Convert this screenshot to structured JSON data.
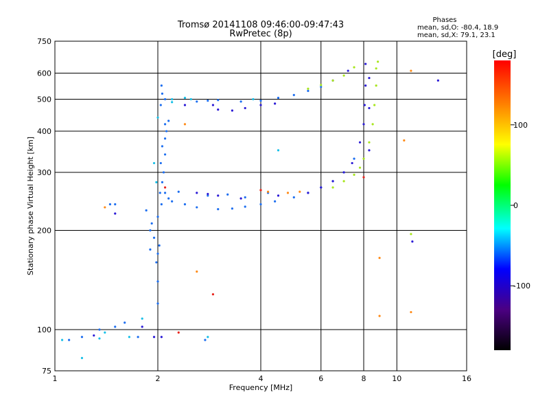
{
  "chart_data": {
    "type": "scatter",
    "title": "Tromsø 20141108 09:46:00-09:47:43",
    "subtitle": "RwPretec (8p)",
    "xlabel": "Frequency [MHz]",
    "ylabel": "Stationary phase Virtual Height [km]",
    "x_scale": "log2",
    "y_scale": "log",
    "xlim": [
      1,
      16
    ],
    "ylim": [
      75,
      750
    ],
    "x_ticks": [
      1,
      2,
      4,
      6,
      8,
      10,
      16
    ],
    "y_ticks": [
      75,
      100,
      200,
      300,
      400,
      500,
      600,
      750
    ],
    "grid": true,
    "phases_title": "Phases",
    "stats_lines": [
      "mean, sd,O: -80.4, 18.9",
      "mean, sd,X: 79.1, 23.1"
    ],
    "colorbar": {
      "label": "[deg]",
      "range": [
        -180,
        180
      ],
      "ticks": [
        100,
        0,
        -100
      ],
      "colors": [
        "#000000",
        "#4b0082",
        "#0000ff",
        "#00ffff",
        "#00ff00",
        "#ffff00",
        "#ff8000",
        "#ff0000"
      ]
    },
    "series": [
      {
        "color": "#1e6ff0",
        "points": [
          [
            2.0,
            120
          ],
          [
            2.0,
            140
          ],
          [
            1.98,
            160
          ],
          [
            2.02,
            180
          ],
          [
            1.95,
            190
          ],
          [
            1.9,
            200
          ],
          [
            1.92,
            210
          ],
          [
            2.0,
            220
          ],
          [
            2.05,
            240
          ],
          [
            2.03,
            260
          ],
          [
            2.06,
            280
          ],
          [
            2.08,
            300
          ],
          [
            2.04,
            320
          ],
          [
            2.1,
            340
          ],
          [
            2.06,
            360
          ],
          [
            2.1,
            380
          ],
          [
            2.12,
            400
          ],
          [
            2.1,
            420
          ],
          [
            2.15,
            430
          ],
          [
            2.04,
            480
          ],
          [
            2.06,
            520
          ],
          [
            2.05,
            550
          ],
          [
            2.0,
            170
          ],
          [
            1.9,
            175
          ],
          [
            1.85,
            230
          ],
          [
            2.15,
            250
          ],
          [
            2.2,
            245
          ],
          [
            2.4,
            240
          ],
          [
            2.6,
            235
          ],
          [
            3.0,
            232
          ],
          [
            3.3,
            233
          ],
          [
            3.6,
            236
          ],
          [
            4.0,
            240
          ],
          [
            4.4,
            245
          ],
          [
            5.0,
            252
          ],
          [
            5.5,
            260
          ],
          [
            6.0,
            270
          ],
          [
            6.5,
            282
          ],
          [
            7.0,
            300
          ],
          [
            7.5,
            330
          ],
          [
            2.1,
            260
          ],
          [
            2.3,
            262
          ],
          [
            2.8,
            255
          ],
          [
            3.2,
            257
          ],
          [
            3.6,
            252
          ],
          [
            4.2,
            260
          ],
          [
            2.1,
            500
          ],
          [
            2.6,
            492
          ],
          [
            2.8,
            495
          ],
          [
            3.0,
            497
          ],
          [
            3.5,
            492
          ],
          [
            4.0,
            495
          ],
          [
            4.5,
            505
          ],
          [
            5.0,
            515
          ],
          [
            5.5,
            530
          ],
          [
            6.0,
            545
          ],
          [
            1.1,
            93
          ],
          [
            1.2,
            95
          ],
          [
            1.35,
            100
          ],
          [
            1.5,
            102
          ],
          [
            1.6,
            105
          ],
          [
            1.75,
            95
          ],
          [
            1.45,
            240
          ],
          [
            1.5,
            240
          ],
          [
            2.75,
            93
          ]
        ]
      },
      {
        "color": "#2b1bd6",
        "points": [
          [
            2.6,
            260
          ],
          [
            2.8,
            258
          ],
          [
            3.0,
            255
          ],
          [
            3.5,
            250
          ],
          [
            4.5,
            255
          ],
          [
            5.5,
            260
          ],
          [
            6.0,
            270
          ],
          [
            6.5,
            282
          ],
          [
            7.0,
            300
          ],
          [
            7.4,
            320
          ],
          [
            7.8,
            370
          ],
          [
            8.0,
            420
          ],
          [
            8.05,
            480
          ],
          [
            8.1,
            550
          ],
          [
            8.1,
            640
          ],
          [
            6.5,
            570
          ],
          [
            7.2,
            610
          ],
          [
            2.4,
            480
          ],
          [
            2.9,
            480
          ],
          [
            3.0,
            465
          ],
          [
            3.3,
            462
          ],
          [
            3.6,
            470
          ],
          [
            4.0,
            480
          ],
          [
            4.4,
            485
          ],
          [
            1.8,
            102
          ],
          [
            1.95,
            95
          ],
          [
            2.05,
            95
          ],
          [
            1.5,
            225
          ],
          [
            8.3,
            350
          ],
          [
            8.3,
            470
          ],
          [
            8.3,
            580
          ],
          [
            11.1,
            185
          ],
          [
            13.2,
            570
          ],
          [
            1.3,
            96
          ]
        ]
      },
      {
        "color": "#18c0e8",
        "points": [
          [
            2.0,
            440
          ],
          [
            1.98,
            280
          ],
          [
            1.95,
            320
          ],
          [
            2.2,
            500
          ],
          [
            2.2,
            490
          ],
          [
            2.4,
            505
          ],
          [
            2.5,
            500
          ],
          [
            3.8,
            500
          ],
          [
            4.5,
            350
          ],
          [
            1.35,
            94
          ],
          [
            1.4,
            98
          ],
          [
            1.8,
            108
          ],
          [
            1.65,
            95
          ],
          [
            2.8,
            95
          ],
          [
            1.2,
            82
          ],
          [
            1.05,
            93
          ]
        ]
      },
      {
        "color": "#a8e61e",
        "points": [
          [
            6.5,
            270
          ],
          [
            7.0,
            282
          ],
          [
            7.5,
            295
          ],
          [
            7.8,
            310
          ],
          [
            8.0,
            330
          ],
          [
            8.3,
            370
          ],
          [
            8.5,
            420
          ],
          [
            8.6,
            480
          ],
          [
            8.7,
            550
          ],
          [
            8.7,
            620
          ],
          [
            8.8,
            650
          ],
          [
            5.5,
            538
          ],
          [
            6.0,
            552
          ],
          [
            6.5,
            570
          ],
          [
            7.0,
            590
          ],
          [
            7.5,
            625
          ],
          [
            11.0,
            195
          ]
        ]
      },
      {
        "color": "#ff8c1a",
        "points": [
          [
            4.0,
            265
          ],
          [
            4.2,
            262
          ],
          [
            4.8,
            260
          ],
          [
            5.2,
            262
          ],
          [
            1.4,
            235
          ],
          [
            11.0,
            610
          ],
          [
            8.9,
            165
          ],
          [
            8.9,
            110
          ],
          [
            10.5,
            375
          ],
          [
            11.0,
            113
          ],
          [
            2.6,
            150
          ],
          [
            2.4,
            420
          ]
        ]
      },
      {
        "color": "#e8251e",
        "points": [
          [
            2.1,
            270
          ],
          [
            2.3,
            98
          ],
          [
            2.9,
            128
          ],
          [
            4.0,
            265
          ],
          [
            8.0,
            290
          ]
        ]
      }
    ]
  }
}
